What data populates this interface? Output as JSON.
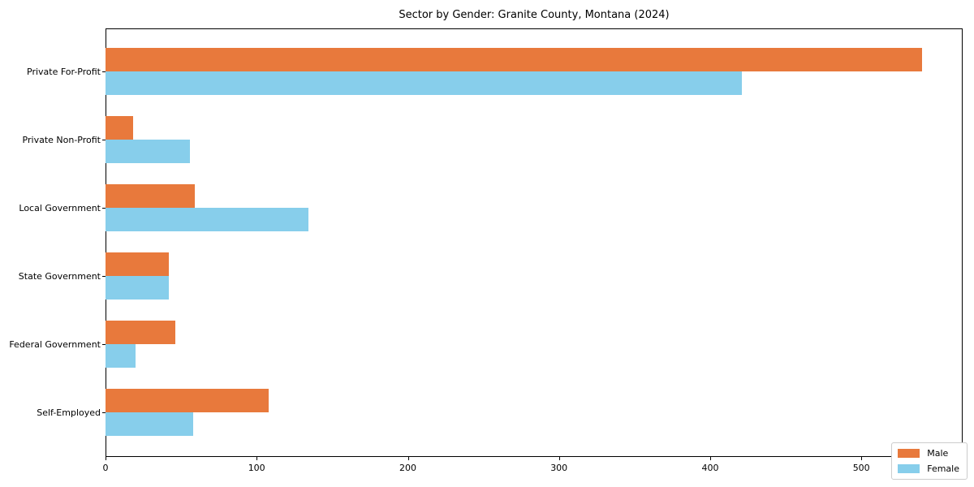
{
  "title": "Sector by Gender: Granite County, Montana (2024)",
  "colors": {
    "male": "#e8793c",
    "female": "#87ceeb",
    "spine": "#000000",
    "legend_border": "#cccccc",
    "background": "#ffffff"
  },
  "legend": {
    "items": [
      {
        "label": "Male",
        "color": "#e8793c"
      },
      {
        "label": "Female",
        "color": "#87ceeb"
      }
    ]
  },
  "chart_data": {
    "type": "bar",
    "orientation": "horizontal",
    "title": "Sector by Gender: Granite County, Montana (2024)",
    "categories": [
      "Private For-Profit",
      "Private Non-Profit",
      "Local Government",
      "State Government",
      "Federal Government",
      "Self-Employed"
    ],
    "series": [
      {
        "name": "Male",
        "color": "#e8793c",
        "values": [
          540,
          18,
          59,
          42,
          46,
          108
        ]
      },
      {
        "name": "Female",
        "color": "#87ceeb",
        "values": [
          421,
          56,
          134,
          42,
          20,
          58
        ]
      }
    ],
    "xlabel": "",
    "ylabel": "",
    "xlim": [
      0,
      567
    ],
    "x_ticks": [
      0,
      100,
      200,
      300,
      400,
      500
    ],
    "grid": false,
    "legend_position": "lower right"
  }
}
